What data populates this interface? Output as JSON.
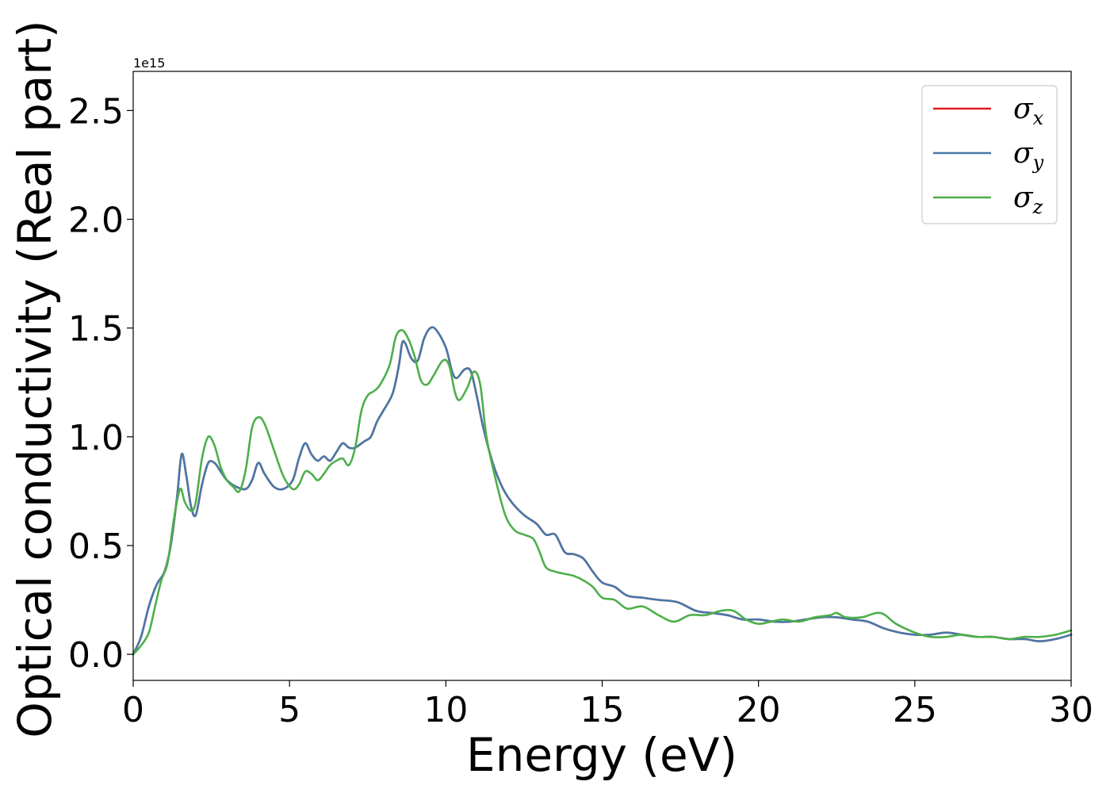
{
  "chart_data": {
    "type": "line",
    "xlabel": "Energy (eV)",
    "ylabel": "Optical conductivity (Real part)",
    "y_offset_label": "1e15",
    "xlim": [
      0,
      30
    ],
    "ylim": [
      -0.12,
      2.68
    ],
    "x_ticks": [
      0,
      5,
      10,
      15,
      20,
      25,
      30
    ],
    "x_tick_labels": [
      "0",
      "5",
      "10",
      "15",
      "20",
      "25",
      "30"
    ],
    "y_ticks": [
      0.0,
      0.5,
      1.0,
      1.5,
      2.0,
      2.5
    ],
    "y_tick_labels": [
      "0.0",
      "0.5",
      "1.0",
      "1.5",
      "2.0",
      "2.5"
    ],
    "grid": false,
    "legend_position": "top-right",
    "series": [
      {
        "name": "σ",
        "subscript": "x",
        "color": "#e41a1c",
        "points": [
          [
            0,
            0
          ],
          [
            0.25,
            0.08
          ],
          [
            0.5,
            0.22
          ],
          [
            0.75,
            0.32
          ],
          [
            1.0,
            0.38
          ],
          [
            1.2,
            0.5
          ],
          [
            1.4,
            0.72
          ],
          [
            1.55,
            0.92
          ],
          [
            1.7,
            0.82
          ],
          [
            1.85,
            0.68
          ],
          [
            2.0,
            0.64
          ],
          [
            2.2,
            0.78
          ],
          [
            2.4,
            0.88
          ],
          [
            2.6,
            0.88
          ],
          [
            2.8,
            0.84
          ],
          [
            3.0,
            0.8
          ],
          [
            3.3,
            0.77
          ],
          [
            3.6,
            0.76
          ],
          [
            3.8,
            0.8
          ],
          [
            4.0,
            0.88
          ],
          [
            4.2,
            0.83
          ],
          [
            4.5,
            0.77
          ],
          [
            4.8,
            0.76
          ],
          [
            5.1,
            0.8
          ],
          [
            5.3,
            0.9
          ],
          [
            5.5,
            0.97
          ],
          [
            5.7,
            0.92
          ],
          [
            5.9,
            0.89
          ],
          [
            6.1,
            0.91
          ],
          [
            6.3,
            0.89
          ],
          [
            6.5,
            0.93
          ],
          [
            6.7,
            0.97
          ],
          [
            6.9,
            0.95
          ],
          [
            7.1,
            0.95
          ],
          [
            7.4,
            0.98
          ],
          [
            7.6,
            1.0
          ],
          [
            7.8,
            1.07
          ],
          [
            8.0,
            1.12
          ],
          [
            8.3,
            1.2
          ],
          [
            8.5,
            1.33
          ],
          [
            8.6,
            1.43
          ],
          [
            8.7,
            1.43
          ],
          [
            8.9,
            1.36
          ],
          [
            9.1,
            1.35
          ],
          [
            9.3,
            1.45
          ],
          [
            9.5,
            1.5
          ],
          [
            9.7,
            1.49
          ],
          [
            10.0,
            1.41
          ],
          [
            10.2,
            1.3
          ],
          [
            10.35,
            1.27
          ],
          [
            10.6,
            1.31
          ],
          [
            10.8,
            1.3
          ],
          [
            11.0,
            1.18
          ],
          [
            11.2,
            1.04
          ],
          [
            11.5,
            0.88
          ],
          [
            11.8,
            0.77
          ],
          [
            12.1,
            0.7
          ],
          [
            12.5,
            0.64
          ],
          [
            12.9,
            0.6
          ],
          [
            13.2,
            0.55
          ],
          [
            13.5,
            0.55
          ],
          [
            13.8,
            0.47
          ],
          [
            14.1,
            0.46
          ],
          [
            14.4,
            0.44
          ],
          [
            14.7,
            0.38
          ],
          [
            15.0,
            0.33
          ],
          [
            15.4,
            0.31
          ],
          [
            15.8,
            0.27
          ],
          [
            16.3,
            0.26
          ],
          [
            16.8,
            0.25
          ],
          [
            17.4,
            0.24
          ],
          [
            18.0,
            0.2
          ],
          [
            18.5,
            0.19
          ],
          [
            19.0,
            0.18
          ],
          [
            19.5,
            0.16
          ],
          [
            20.0,
            0.16
          ],
          [
            20.5,
            0.15
          ],
          [
            21.0,
            0.15
          ],
          [
            21.5,
            0.16
          ],
          [
            22.0,
            0.17
          ],
          [
            22.5,
            0.17
          ],
          [
            23.0,
            0.16
          ],
          [
            23.5,
            0.15
          ],
          [
            24.0,
            0.12
          ],
          [
            24.5,
            0.1
          ],
          [
            25.0,
            0.09
          ],
          [
            25.5,
            0.09
          ],
          [
            26.0,
            0.1
          ],
          [
            26.5,
            0.09
          ],
          [
            27.0,
            0.08
          ],
          [
            27.5,
            0.08
          ],
          [
            28.0,
            0.07
          ],
          [
            28.5,
            0.07
          ],
          [
            29.0,
            0.06
          ],
          [
            29.5,
            0.07
          ],
          [
            30.0,
            0.09
          ]
        ]
      },
      {
        "name": "σ",
        "subscript": "y",
        "color": "#4878a8",
        "points": [
          [
            0,
            0
          ],
          [
            0.25,
            0.08
          ],
          [
            0.5,
            0.22
          ],
          [
            0.75,
            0.32
          ],
          [
            1.0,
            0.38
          ],
          [
            1.2,
            0.5
          ],
          [
            1.4,
            0.72
          ],
          [
            1.55,
            0.92
          ],
          [
            1.7,
            0.82
          ],
          [
            1.85,
            0.68
          ],
          [
            2.0,
            0.64
          ],
          [
            2.2,
            0.78
          ],
          [
            2.4,
            0.88
          ],
          [
            2.6,
            0.88
          ],
          [
            2.8,
            0.84
          ],
          [
            3.0,
            0.8
          ],
          [
            3.3,
            0.77
          ],
          [
            3.6,
            0.76
          ],
          [
            3.8,
            0.8
          ],
          [
            4.0,
            0.88
          ],
          [
            4.2,
            0.83
          ],
          [
            4.5,
            0.77
          ],
          [
            4.8,
            0.76
          ],
          [
            5.1,
            0.8
          ],
          [
            5.3,
            0.9
          ],
          [
            5.5,
            0.97
          ],
          [
            5.7,
            0.92
          ],
          [
            5.9,
            0.89
          ],
          [
            6.1,
            0.91
          ],
          [
            6.3,
            0.89
          ],
          [
            6.5,
            0.93
          ],
          [
            6.7,
            0.97
          ],
          [
            6.9,
            0.95
          ],
          [
            7.1,
            0.95
          ],
          [
            7.4,
            0.98
          ],
          [
            7.6,
            1.0
          ],
          [
            7.8,
            1.07
          ],
          [
            8.0,
            1.12
          ],
          [
            8.3,
            1.2
          ],
          [
            8.5,
            1.33
          ],
          [
            8.6,
            1.43
          ],
          [
            8.7,
            1.43
          ],
          [
            8.9,
            1.36
          ],
          [
            9.1,
            1.35
          ],
          [
            9.3,
            1.45
          ],
          [
            9.5,
            1.5
          ],
          [
            9.7,
            1.49
          ],
          [
            10.0,
            1.41
          ],
          [
            10.2,
            1.3
          ],
          [
            10.35,
            1.27
          ],
          [
            10.6,
            1.31
          ],
          [
            10.8,
            1.3
          ],
          [
            11.0,
            1.18
          ],
          [
            11.2,
            1.04
          ],
          [
            11.5,
            0.88
          ],
          [
            11.8,
            0.77
          ],
          [
            12.1,
            0.7
          ],
          [
            12.5,
            0.64
          ],
          [
            12.9,
            0.6
          ],
          [
            13.2,
            0.55
          ],
          [
            13.5,
            0.55
          ],
          [
            13.8,
            0.47
          ],
          [
            14.1,
            0.46
          ],
          [
            14.4,
            0.44
          ],
          [
            14.7,
            0.38
          ],
          [
            15.0,
            0.33
          ],
          [
            15.4,
            0.31
          ],
          [
            15.8,
            0.27
          ],
          [
            16.3,
            0.26
          ],
          [
            16.8,
            0.25
          ],
          [
            17.4,
            0.24
          ],
          [
            18.0,
            0.2
          ],
          [
            18.5,
            0.19
          ],
          [
            19.0,
            0.18
          ],
          [
            19.5,
            0.16
          ],
          [
            20.0,
            0.16
          ],
          [
            20.5,
            0.15
          ],
          [
            21.0,
            0.15
          ],
          [
            21.5,
            0.16
          ],
          [
            22.0,
            0.17
          ],
          [
            22.5,
            0.17
          ],
          [
            23.0,
            0.16
          ],
          [
            23.5,
            0.15
          ],
          [
            24.0,
            0.12
          ],
          [
            24.5,
            0.1
          ],
          [
            25.0,
            0.09
          ],
          [
            25.5,
            0.09
          ],
          [
            26.0,
            0.1
          ],
          [
            26.5,
            0.09
          ],
          [
            27.0,
            0.08
          ],
          [
            27.5,
            0.08
          ],
          [
            28.0,
            0.07
          ],
          [
            28.5,
            0.07
          ],
          [
            29.0,
            0.06
          ],
          [
            29.5,
            0.07
          ],
          [
            30.0,
            0.09
          ]
        ]
      },
      {
        "name": "σ",
        "subscript": "z",
        "color": "#4daf4a",
        "points": [
          [
            0,
            0
          ],
          [
            0.25,
            0.04
          ],
          [
            0.5,
            0.1
          ],
          [
            0.7,
            0.22
          ],
          [
            0.9,
            0.34
          ],
          [
            1.1,
            0.42
          ],
          [
            1.3,
            0.62
          ],
          [
            1.5,
            0.76
          ],
          [
            1.65,
            0.7
          ],
          [
            1.85,
            0.66
          ],
          [
            2.0,
            0.7
          ],
          [
            2.2,
            0.9
          ],
          [
            2.4,
            1.0
          ],
          [
            2.6,
            0.96
          ],
          [
            2.8,
            0.86
          ],
          [
            3.0,
            0.8
          ],
          [
            3.2,
            0.77
          ],
          [
            3.4,
            0.75
          ],
          [
            3.6,
            0.85
          ],
          [
            3.8,
            1.04
          ],
          [
            4.0,
            1.09
          ],
          [
            4.2,
            1.06
          ],
          [
            4.5,
            0.94
          ],
          [
            4.8,
            0.82
          ],
          [
            5.1,
            0.76
          ],
          [
            5.3,
            0.78
          ],
          [
            5.5,
            0.84
          ],
          [
            5.7,
            0.83
          ],
          [
            5.9,
            0.8
          ],
          [
            6.1,
            0.83
          ],
          [
            6.3,
            0.87
          ],
          [
            6.5,
            0.89
          ],
          [
            6.7,
            0.9
          ],
          [
            6.9,
            0.87
          ],
          [
            7.1,
            0.95
          ],
          [
            7.3,
            1.12
          ],
          [
            7.5,
            1.19
          ],
          [
            7.7,
            1.21
          ],
          [
            7.9,
            1.24
          ],
          [
            8.2,
            1.33
          ],
          [
            8.4,
            1.46
          ],
          [
            8.6,
            1.49
          ],
          [
            8.8,
            1.45
          ],
          [
            9.0,
            1.37
          ],
          [
            9.2,
            1.26
          ],
          [
            9.4,
            1.24
          ],
          [
            9.6,
            1.28
          ],
          [
            9.9,
            1.35
          ],
          [
            10.1,
            1.33
          ],
          [
            10.3,
            1.2
          ],
          [
            10.45,
            1.17
          ],
          [
            10.7,
            1.23
          ],
          [
            10.9,
            1.3
          ],
          [
            11.1,
            1.24
          ],
          [
            11.3,
            1.0
          ],
          [
            11.6,
            0.8
          ],
          [
            11.9,
            0.64
          ],
          [
            12.2,
            0.57
          ],
          [
            12.5,
            0.55
          ],
          [
            12.8,
            0.53
          ],
          [
            13.0,
            0.47
          ],
          [
            13.2,
            0.4
          ],
          [
            13.5,
            0.38
          ],
          [
            13.8,
            0.37
          ],
          [
            14.1,
            0.36
          ],
          [
            14.4,
            0.34
          ],
          [
            14.7,
            0.31
          ],
          [
            15.0,
            0.26
          ],
          [
            15.4,
            0.25
          ],
          [
            15.8,
            0.21
          ],
          [
            16.3,
            0.22
          ],
          [
            16.8,
            0.18
          ],
          [
            17.3,
            0.15
          ],
          [
            17.8,
            0.18
          ],
          [
            18.3,
            0.18
          ],
          [
            18.8,
            0.2
          ],
          [
            19.2,
            0.2
          ],
          [
            19.6,
            0.16
          ],
          [
            20.0,
            0.14
          ],
          [
            20.4,
            0.15
          ],
          [
            20.8,
            0.16
          ],
          [
            21.3,
            0.15
          ],
          [
            21.8,
            0.17
          ],
          [
            22.3,
            0.18
          ],
          [
            22.5,
            0.19
          ],
          [
            22.8,
            0.17
          ],
          [
            23.3,
            0.17
          ],
          [
            23.9,
            0.19
          ],
          [
            24.4,
            0.14
          ],
          [
            25.0,
            0.1
          ],
          [
            25.5,
            0.08
          ],
          [
            26.0,
            0.08
          ],
          [
            26.5,
            0.09
          ],
          [
            27.0,
            0.08
          ],
          [
            27.5,
            0.08
          ],
          [
            28.0,
            0.07
          ],
          [
            28.5,
            0.08
          ],
          [
            29.0,
            0.08
          ],
          [
            29.5,
            0.09
          ],
          [
            30.0,
            0.11
          ]
        ]
      }
    ]
  }
}
